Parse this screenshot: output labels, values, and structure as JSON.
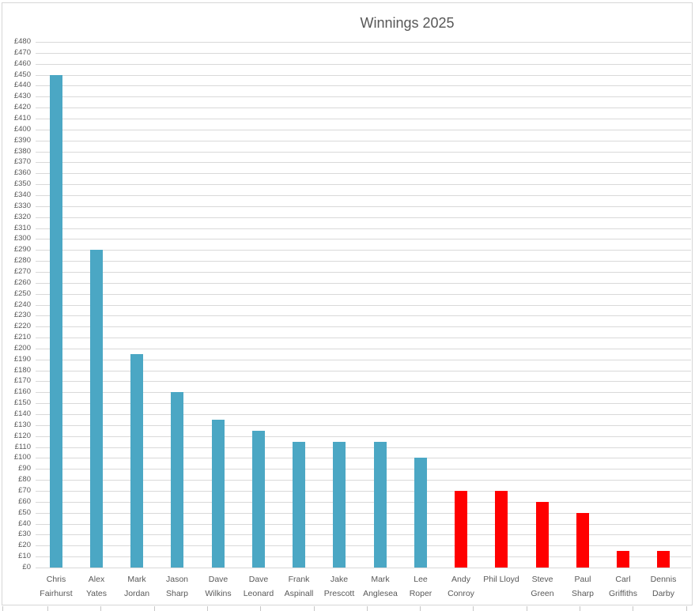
{
  "chart_data": {
    "type": "bar",
    "title": "Winnings 2025",
    "currency": "£",
    "categories": [
      "Chris Fairhurst",
      "Alex Yates",
      "Mark Jordan",
      "Jason Sharp",
      "Dave Wilkins",
      "Dave Leonard",
      "Frank Aspinall",
      "Jake Prescott",
      "Mark Anglesea",
      "Lee Roper",
      "Andy Conroy",
      "Phil Lloyd",
      "Steve Green",
      "Paul Sharp",
      "Carl Griffiths",
      "Dennis Darby"
    ],
    "category_label_lines": [
      [
        "Chris",
        "Fairhurst"
      ],
      [
        "Alex",
        "Yates"
      ],
      [
        "Mark",
        "Jordan"
      ],
      [
        "Jason",
        "Sharp"
      ],
      [
        "Dave",
        "Wilkins"
      ],
      [
        "Dave",
        "Leonard"
      ],
      [
        "Frank",
        "Aspinall"
      ],
      [
        "Jake",
        "Prescott"
      ],
      [
        "Mark",
        "Anglesea"
      ],
      [
        "Lee",
        "Roper"
      ],
      [
        "Andy",
        "Conroy"
      ],
      [
        "Phil Lloyd"
      ],
      [
        "Steve",
        "Green"
      ],
      [
        "Paul",
        "Sharp"
      ],
      [
        "Carl",
        "Griffiths"
      ],
      [
        "Dennis",
        "Darby"
      ]
    ],
    "values": [
      450,
      290,
      195,
      160,
      135,
      125,
      115,
      115,
      115,
      100,
      70,
      70,
      60,
      50,
      15,
      15
    ],
    "bar_colors": [
      "#4BA7C4",
      "#4BA7C4",
      "#4BA7C4",
      "#4BA7C4",
      "#4BA7C4",
      "#4BA7C4",
      "#4BA7C4",
      "#4BA7C4",
      "#4BA7C4",
      "#4BA7C4",
      "#FF0000",
      "#FF0000",
      "#FF0000",
      "#FF0000",
      "#FF0000",
      "#FF0000"
    ],
    "ylim": [
      0,
      480
    ],
    "ytick_step": 10,
    "ytick_labels": [
      "£0",
      "£10",
      "£20",
      "£30",
      "£40",
      "£50",
      "£60",
      "£70",
      "£80",
      "£90",
      "£100",
      "£110",
      "£120",
      "£130",
      "£140",
      "£150",
      "£160",
      "£170",
      "£180",
      "£190",
      "£200",
      "£210",
      "£220",
      "£230",
      "£240",
      "£250",
      "£260",
      "£270",
      "£280",
      "£290",
      "£300",
      "£310",
      "£320",
      "£330",
      "£340",
      "£350",
      "£360",
      "£370",
      "£380",
      "£390",
      "£400",
      "£410",
      "£420",
      "£430",
      "£440",
      "£450",
      "£460",
      "£470",
      "£480"
    ],
    "xlabel": "",
    "ylabel": "",
    "grid": true,
    "legend": "none",
    "colors": {
      "teal_series": "#4BA7C4",
      "red_series": "#FF0000",
      "gridline": "#D9D9D9",
      "axis_text": "#595959",
      "title_text": "#575757",
      "chart_border": "#D6D6D6"
    }
  }
}
